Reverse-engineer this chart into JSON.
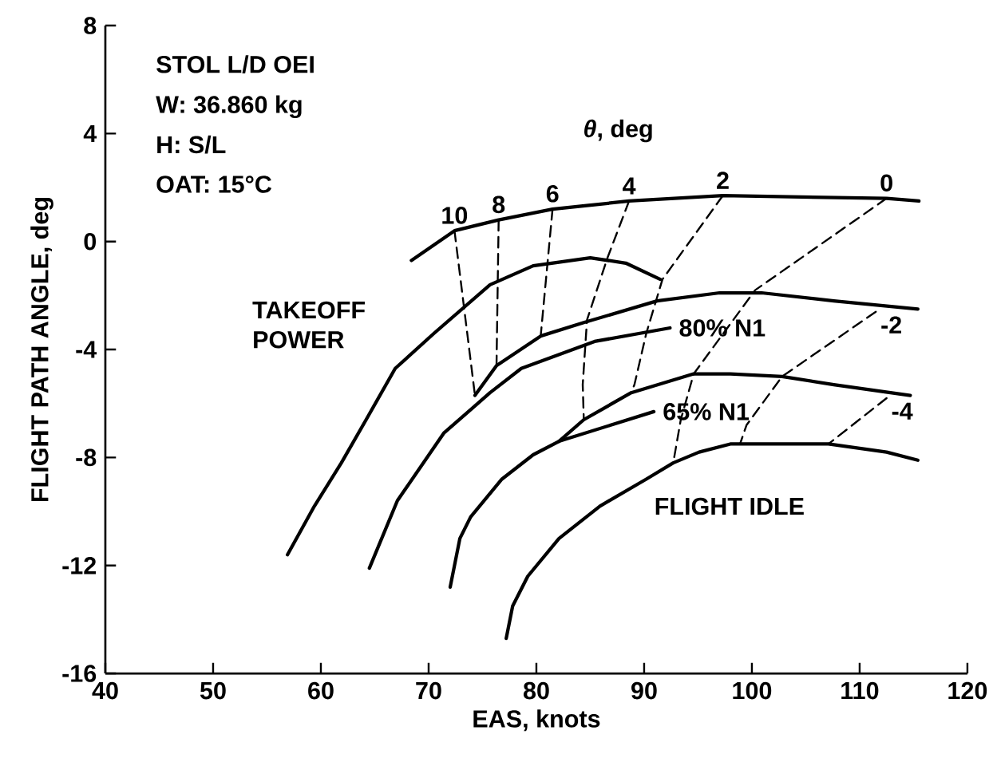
{
  "chart_data": {
    "type": "line",
    "xlabel": "EAS, knots",
    "ylabel": "FLIGHT PATH ANGLE, deg",
    "xlim": [
      40,
      120
    ],
    "ylim": [
      -16,
      8
    ],
    "xticks": [
      40,
      50,
      60,
      70,
      80,
      90,
      100,
      110,
      120
    ],
    "yticks": [
      -16,
      -12,
      -8,
      -4,
      0,
      4,
      8
    ],
    "grid": false,
    "legend": false,
    "series": [
      {
        "color": "#000000",
        "line_style": "solid",
        "x": [
          68.4,
          72.4,
          76.5,
          81.5,
          88.6,
          97.3,
          112.5,
          115.5
        ],
        "values": [
          -0.7,
          0.4,
          0.8,
          1.2,
          1.5,
          1.7,
          1.6,
          1.5
        ]
      },
      {
        "color": "#000000",
        "line_style": "solid",
        "x": [
          74.3,
          76.3,
          80.4,
          84.4,
          91.2,
          97.0,
          100.9,
          107.6,
          115.4
        ],
        "values": [
          -5.7,
          -4.6,
          -3.5,
          -3.0,
          -2.2,
          -1.9,
          -1.9,
          -2.2,
          -2.5
        ]
      },
      {
        "color": "#000000",
        "line_style": "solid",
        "x": [
          82.1,
          84.4,
          88.8,
          94.6,
          98.0,
          102.8,
          107.6,
          114.7
        ],
        "values": [
          -7.4,
          -6.6,
          -5.6,
          -4.9,
          -4.9,
          -5.0,
          -5.3,
          -5.7
        ]
      },
      {
        "color": "#000000",
        "line_style": "solid",
        "x": [
          77.2,
          77.8,
          79.2,
          82.1,
          85.9,
          90.2,
          92.7,
          95.1,
          98.0,
          102.8,
          107.1,
          112.5,
          115.4
        ],
        "values": [
          -14.7,
          -13.5,
          -12.4,
          -11.0,
          -9.8,
          -8.8,
          -8.2,
          -7.8,
          -7.5,
          -7.5,
          -7.5,
          -7.8,
          -8.1
        ]
      },
      {
        "color": "#000000",
        "line_style": "solid",
        "x": [
          56.9,
          59.4,
          61.9,
          64.2,
          66.9,
          70.5,
          75.7,
          79.7,
          85.0,
          88.3,
          91.5
        ],
        "values": [
          -11.6,
          -9.8,
          -8.2,
          -6.6,
          -4.7,
          -3.4,
          -1.6,
          -0.9,
          -0.6,
          -0.8,
          -1.4
        ]
      },
      {
        "name": "80% N1",
        "color": "#000000",
        "line_style": "solid",
        "x": [
          64.5,
          67.1,
          71.4,
          75.7,
          78.6,
          85.4,
          92.4
        ],
        "values": [
          -12.1,
          -9.6,
          -7.1,
          -5.6,
          -4.7,
          -3.7,
          -3.2
        ]
      },
      {
        "name": "65% N1",
        "color": "#000000",
        "line_style": "solid",
        "x": [
          72.0,
          72.9,
          73.9,
          76.8,
          79.7,
          82.1,
          86.9,
          90.9
        ],
        "values": [
          -12.8,
          -11.0,
          -10.2,
          -8.8,
          -7.9,
          -7.4,
          -6.8,
          -6.3
        ]
      },
      {
        "name": "10",
        "color": "#000000",
        "line_style": "dashed",
        "x": [
          72.4,
          74.3
        ],
        "values": [
          0.4,
          -5.7
        ]
      },
      {
        "name": "8",
        "color": "#000000",
        "line_style": "dashed",
        "x": [
          76.5,
          76.3
        ],
        "values": [
          0.8,
          -4.6
        ]
      },
      {
        "name": "6",
        "color": "#000000",
        "line_style": "dashed",
        "x": [
          81.5,
          80.4
        ],
        "values": [
          1.2,
          -3.5
        ]
      },
      {
        "name": "4",
        "color": "#000000",
        "line_style": "dashed",
        "x": [
          88.6,
          86.6,
          84.7,
          84.3,
          84.4
        ],
        "values": [
          1.5,
          -0.6,
          -2.9,
          -5.3,
          -6.6
        ]
      },
      {
        "name": "2",
        "color": "#000000",
        "line_style": "dashed",
        "x": [
          97.3,
          91.7,
          90.2,
          89.1,
          88.8
        ],
        "values": [
          1.7,
          -1.4,
          -3.4,
          -5.3,
          -5.6
        ]
      },
      {
        "name": "0",
        "color": "#000000",
        "line_style": "dashed",
        "x": [
          112.5,
          100.3,
          94.6,
          93.4,
          92.7
        ],
        "values": [
          1.6,
          -1.8,
          -4.9,
          -6.6,
          -8.2
        ]
      },
      {
        "name": "-2",
        "color": "#000000",
        "line_style": "dashed",
        "x": [
          111.5,
          102.8,
          99.5,
          98.9
        ],
        "values": [
          -2.6,
          -5.0,
          -6.8,
          -7.5
        ]
      },
      {
        "name": "-4",
        "color": "#000000",
        "line_style": "dashed",
        "x": [
          112.5,
          107.1
        ],
        "values": [
          -5.8,
          -7.5
        ]
      }
    ],
    "annotations": [
      "STOL L/D OEI",
      "W:  36.860 kg",
      "H:  S/L",
      "OAT:  15°C",
      "*θ*, deg",
      "TAKEOFF POWER",
      "FLIGHT IDLE"
    ]
  }
}
